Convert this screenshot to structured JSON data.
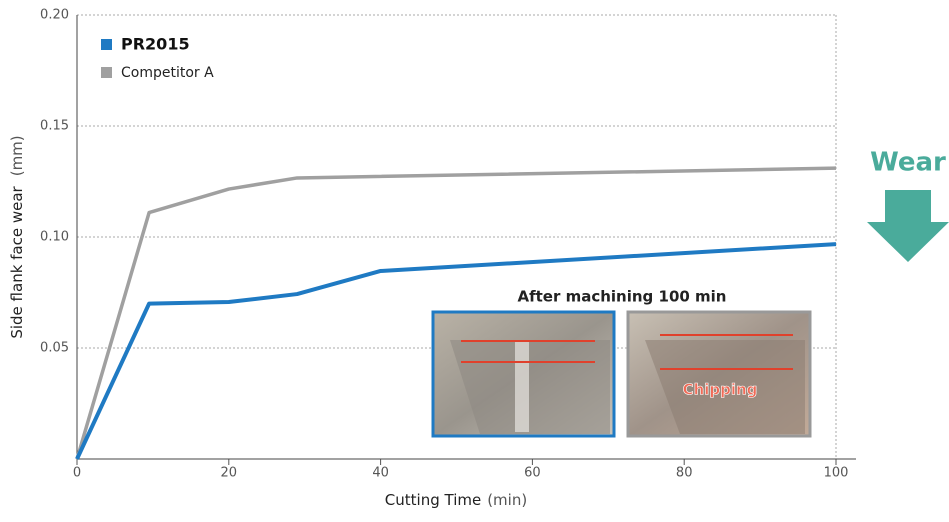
{
  "chart_data": {
    "type": "line",
    "x_label": "Cutting Time",
    "x_unit": "(min)",
    "y_label": "Side flank face wear",
    "y_unit": "(mm)",
    "series": [
      {
        "name": "PR2015",
        "color": "#1f7ac3",
        "x": [
          0,
          9.5,
          20,
          29,
          40,
          100
        ],
        "values": [
          0,
          0.07,
          0.0707,
          0.0743,
          0.0847,
          0.0968
        ]
      },
      {
        "name": "Competitor A",
        "color": "#a0a0a0",
        "x": [
          0,
          9.5,
          20,
          29,
          100
        ],
        "values": [
          0,
          0.111,
          0.1216,
          0.1266,
          0.131
        ]
      }
    ],
    "xlim": [
      0,
      100
    ],
    "xticks": [
      0,
      20,
      40,
      60,
      80,
      100
    ],
    "ylim": [
      0,
      0.2
    ],
    "yticks": [
      {
        "value": 0.05,
        "label": "0.05"
      },
      {
        "value": 0.1,
        "label": "0.10"
      },
      {
        "value": 0.15,
        "label": "0.15"
      },
      {
        "value": 0.2,
        "label": "0.20"
      }
    ],
    "grid": true,
    "legend": "upper left",
    "annotations": {
      "photos_title": "After machining 100 min",
      "chipping": "Chipping",
      "wear": "Wear"
    }
  }
}
